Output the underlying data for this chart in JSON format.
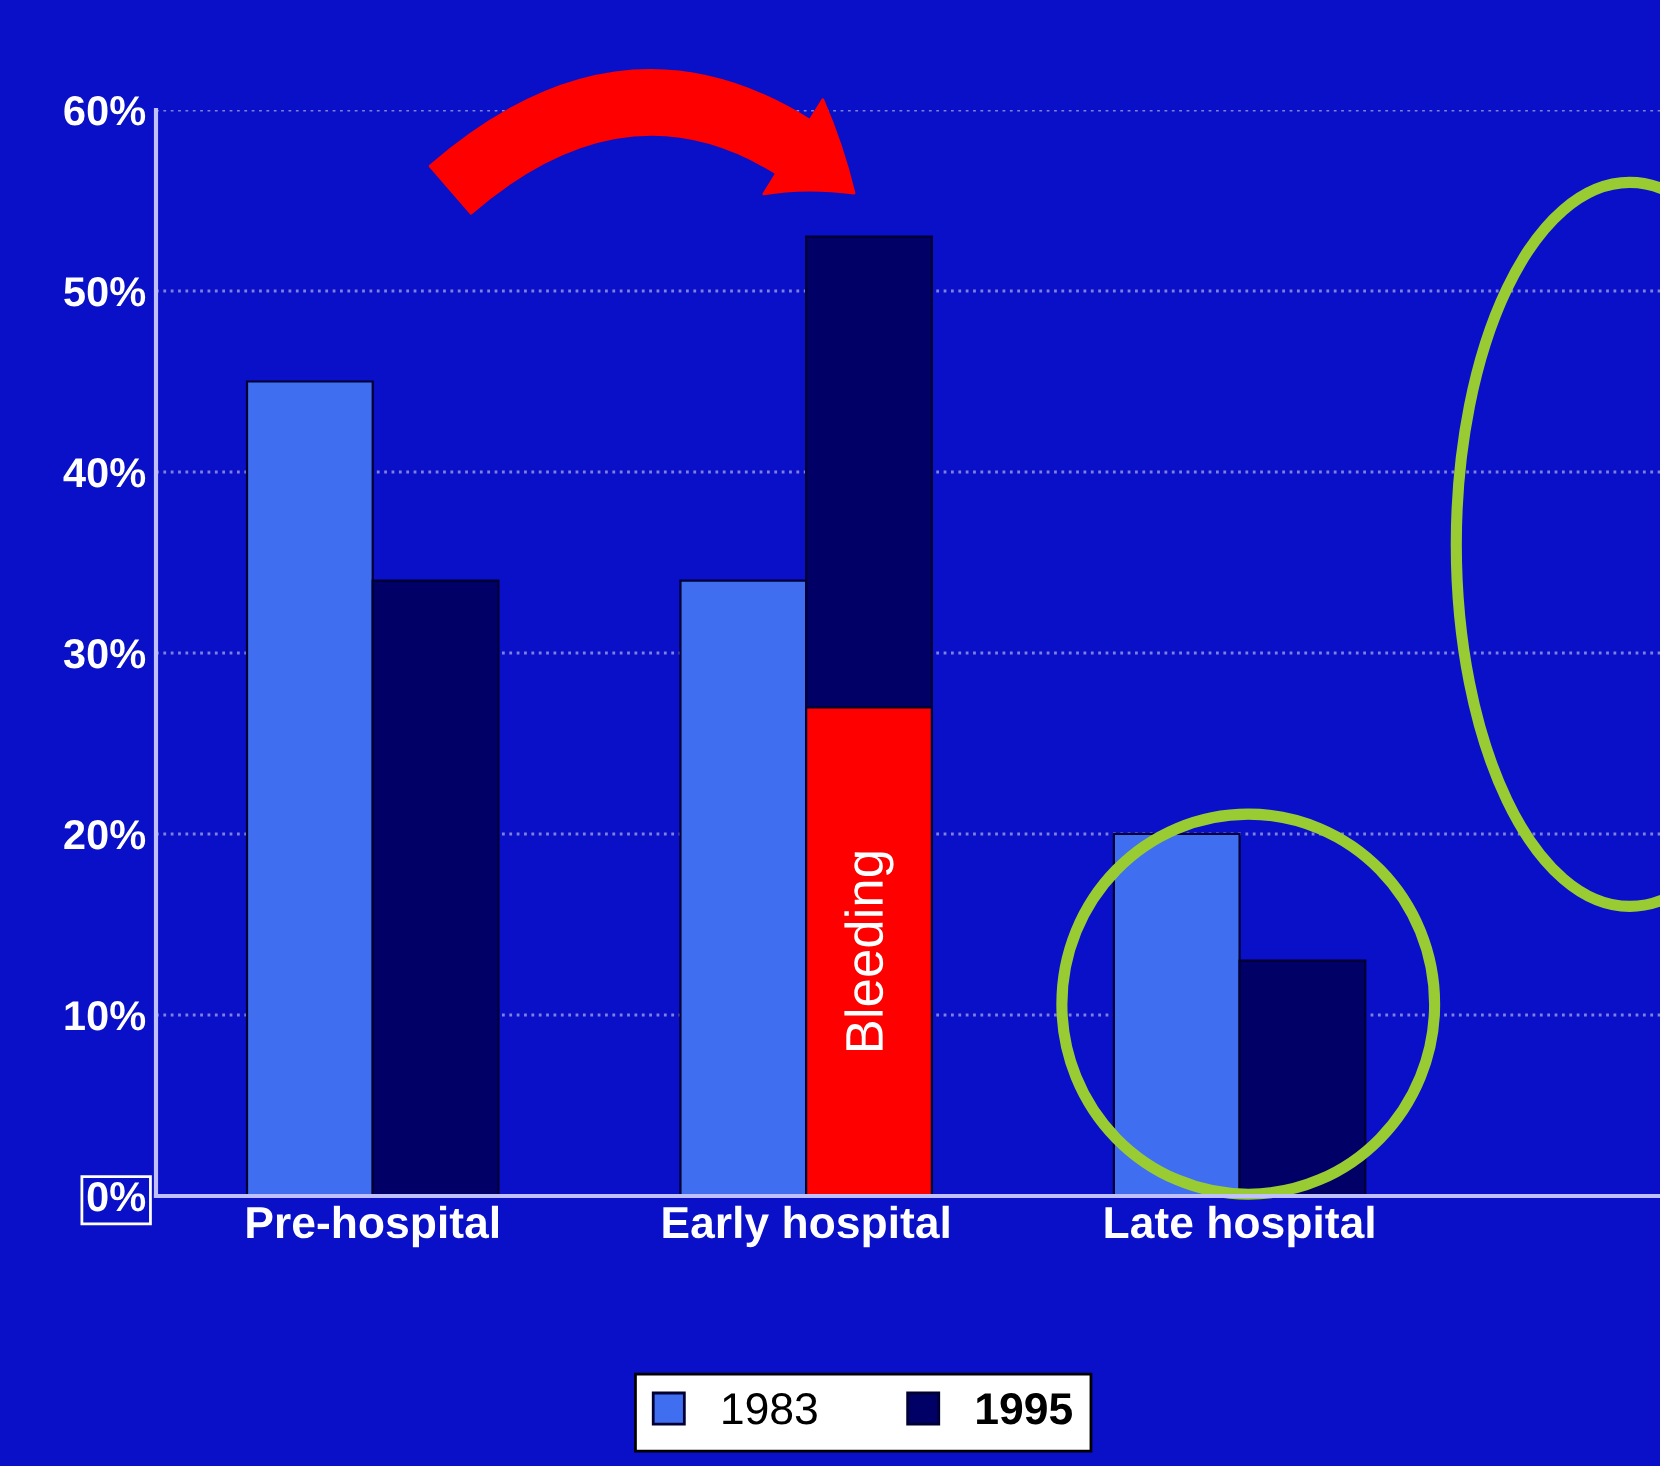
{
  "chart_data": {
    "type": "bar",
    "categories": [
      "Pre-hospital",
      "Early hospital",
      "Late hospital"
    ],
    "series": [
      {
        "name": "1983",
        "color": "#3f6ff0",
        "values": [
          45,
          34,
          20
        ]
      },
      {
        "name": "1995",
        "color": "#000066",
        "values": [
          34,
          26,
          13
        ],
        "base": [
          0,
          27,
          0
        ]
      },
      {
        "name": "Bleeding",
        "color": "#ff0000",
        "values": [
          null,
          27,
          null
        ]
      }
    ],
    "ylim": [
      0,
      60
    ],
    "yticks": [
      {
        "value": 0,
        "label": "0%"
      },
      {
        "value": 10,
        "label": "10%"
      },
      {
        "value": 20,
        "label": "20%"
      },
      {
        "value": 30,
        "label": "30%"
      },
      {
        "value": 40,
        "label": "40%"
      },
      {
        "value": 50,
        "label": "50%"
      },
      {
        "value": 60,
        "label": "60%"
      }
    ],
    "grid": "y",
    "legend": "bottom"
  }
}
